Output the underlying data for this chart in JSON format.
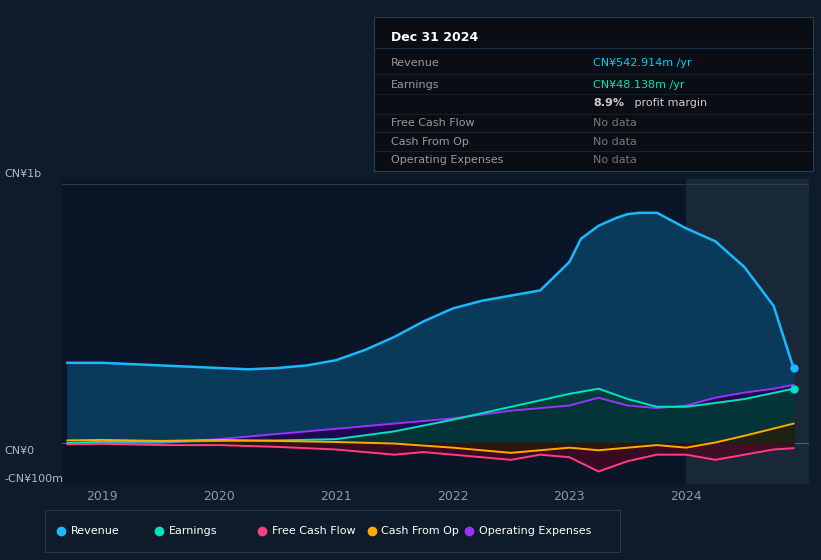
{
  "bg_color": "#0d1b2a",
  "panel_bg": "#0a1628",
  "ylabel_top": "CN¥1b",
  "ylabel_zero": "CN¥0",
  "ylabel_neg": "-CN¥100m",
  "infobox": {
    "title": "Dec 31 2024",
    "rows": [
      {
        "label": "Revenue",
        "value": "CN¥542.914m /yr",
        "value_color": "#00ccff",
        "bold_prefix": ""
      },
      {
        "label": "Earnings",
        "value": "CN¥48.138m /yr",
        "value_color": "#00e5c0",
        "bold_prefix": ""
      },
      {
        "label": "",
        "value": "8.9% profit margin",
        "value_color": "#cccccc",
        "bold_prefix": "8.9%"
      },
      {
        "label": "Free Cash Flow",
        "value": "No data",
        "value_color": "#777777",
        "bold_prefix": ""
      },
      {
        "label": "Cash From Op",
        "value": "No data",
        "value_color": "#777777",
        "bold_prefix": ""
      },
      {
        "label": "Operating Expenses",
        "value": "No data",
        "value_color": "#777777",
        "bold_prefix": ""
      }
    ]
  },
  "series": {
    "revenue": {
      "color": "#1ab8ff",
      "fill_color": "#0a3a5a",
      "label": "Revenue",
      "data_x": [
        2018.7,
        2019.0,
        2019.25,
        2019.5,
        2019.75,
        2020.0,
        2020.25,
        2020.5,
        2020.75,
        2021.0,
        2021.25,
        2021.5,
        2021.75,
        2022.0,
        2022.25,
        2022.5,
        2022.75,
        2023.0,
        2023.1,
        2023.25,
        2023.4,
        2023.5,
        2023.6,
        2023.75,
        2024.0,
        2024.25,
        2024.5,
        2024.75,
        2024.92
      ],
      "data_y": [
        3.1,
        3.1,
        3.05,
        3.0,
        2.95,
        2.9,
        2.85,
        2.9,
        3.0,
        3.2,
        3.6,
        4.1,
        4.7,
        5.2,
        5.5,
        5.7,
        5.9,
        7.0,
        7.9,
        8.4,
        8.7,
        8.85,
        8.9,
        8.9,
        8.3,
        7.8,
        6.8,
        5.3,
        2.9
      ]
    },
    "earnings": {
      "color": "#00e5c0",
      "fill_color": "#003d33",
      "label": "Earnings",
      "data_x": [
        2018.7,
        2019.0,
        2019.5,
        2020.0,
        2020.5,
        2021.0,
        2021.5,
        2022.0,
        2022.5,
        2023.0,
        2023.25,
        2023.5,
        2023.75,
        2024.0,
        2024.5,
        2024.92
      ],
      "data_y": [
        0.0,
        0.05,
        0.05,
        0.08,
        0.1,
        0.15,
        0.45,
        0.9,
        1.4,
        1.9,
        2.1,
        1.7,
        1.4,
        1.4,
        1.7,
        2.1
      ]
    },
    "fcf": {
      "color": "#ff3d7f",
      "fill_color": "#4a0820",
      "label": "Free Cash Flow",
      "data_x": [
        2018.7,
        2019.0,
        2019.5,
        2020.0,
        2020.5,
        2021.0,
        2021.25,
        2021.5,
        2021.75,
        2022.0,
        2022.25,
        2022.5,
        2022.75,
        2023.0,
        2023.25,
        2023.5,
        2023.75,
        2024.0,
        2024.25,
        2024.5,
        2024.75,
        2024.92
      ],
      "data_y": [
        -0.05,
        -0.03,
        -0.08,
        -0.08,
        -0.15,
        -0.25,
        -0.35,
        -0.45,
        -0.35,
        -0.45,
        -0.55,
        -0.65,
        -0.45,
        -0.55,
        -1.1,
        -0.7,
        -0.45,
        -0.45,
        -0.65,
        -0.45,
        -0.25,
        -0.2
      ]
    },
    "cashfromop": {
      "color": "#ffaa00",
      "fill_color": "#2a1a00",
      "label": "Cash From Op",
      "data_x": [
        2018.7,
        2019.0,
        2019.5,
        2020.0,
        2020.5,
        2021.0,
        2021.5,
        2022.0,
        2022.25,
        2022.5,
        2022.75,
        2023.0,
        2023.25,
        2023.5,
        2023.75,
        2024.0,
        2024.25,
        2024.5,
        2024.92
      ],
      "data_y": [
        0.1,
        0.12,
        0.08,
        0.12,
        0.08,
        0.04,
        -0.02,
        -0.18,
        -0.28,
        -0.38,
        -0.28,
        -0.18,
        -0.28,
        -0.18,
        -0.08,
        -0.18,
        0.02,
        0.28,
        0.75
      ]
    },
    "opex": {
      "color": "#9933ff",
      "fill_color": "#22004d",
      "label": "Operating Expenses",
      "data_x": [
        2018.7,
        2019.0,
        2019.5,
        2020.0,
        2020.25,
        2020.5,
        2021.0,
        2021.5,
        2022.0,
        2022.5,
        2023.0,
        2023.25,
        2023.5,
        2023.75,
        2024.0,
        2024.25,
        2024.5,
        2024.75,
        2024.92
      ],
      "data_y": [
        0.0,
        0.0,
        0.0,
        0.15,
        0.25,
        0.35,
        0.55,
        0.75,
        0.95,
        1.25,
        1.45,
        1.75,
        1.45,
        1.35,
        1.45,
        1.75,
        1.95,
        2.1,
        2.25
      ]
    }
  },
  "legend": [
    {
      "label": "Revenue",
      "color": "#1ab8ff"
    },
    {
      "label": "Earnings",
      "color": "#00e5c0"
    },
    {
      "label": "Free Cash Flow",
      "color": "#ff3d7f"
    },
    {
      "label": "Cash From Op",
      "color": "#ffaa00"
    },
    {
      "label": "Operating Expenses",
      "color": "#9933ff"
    }
  ],
  "xlim": [
    2018.65,
    2025.05
  ],
  "ylim": [
    -1.6,
    10.2
  ],
  "shaded_x_start": 2024.0,
  "xtick_positions": [
    2019,
    2020,
    2021,
    2022,
    2023,
    2024
  ],
  "xtick_labels": [
    "2019",
    "2020",
    "2021",
    "2022",
    "2023",
    "2024"
  ]
}
